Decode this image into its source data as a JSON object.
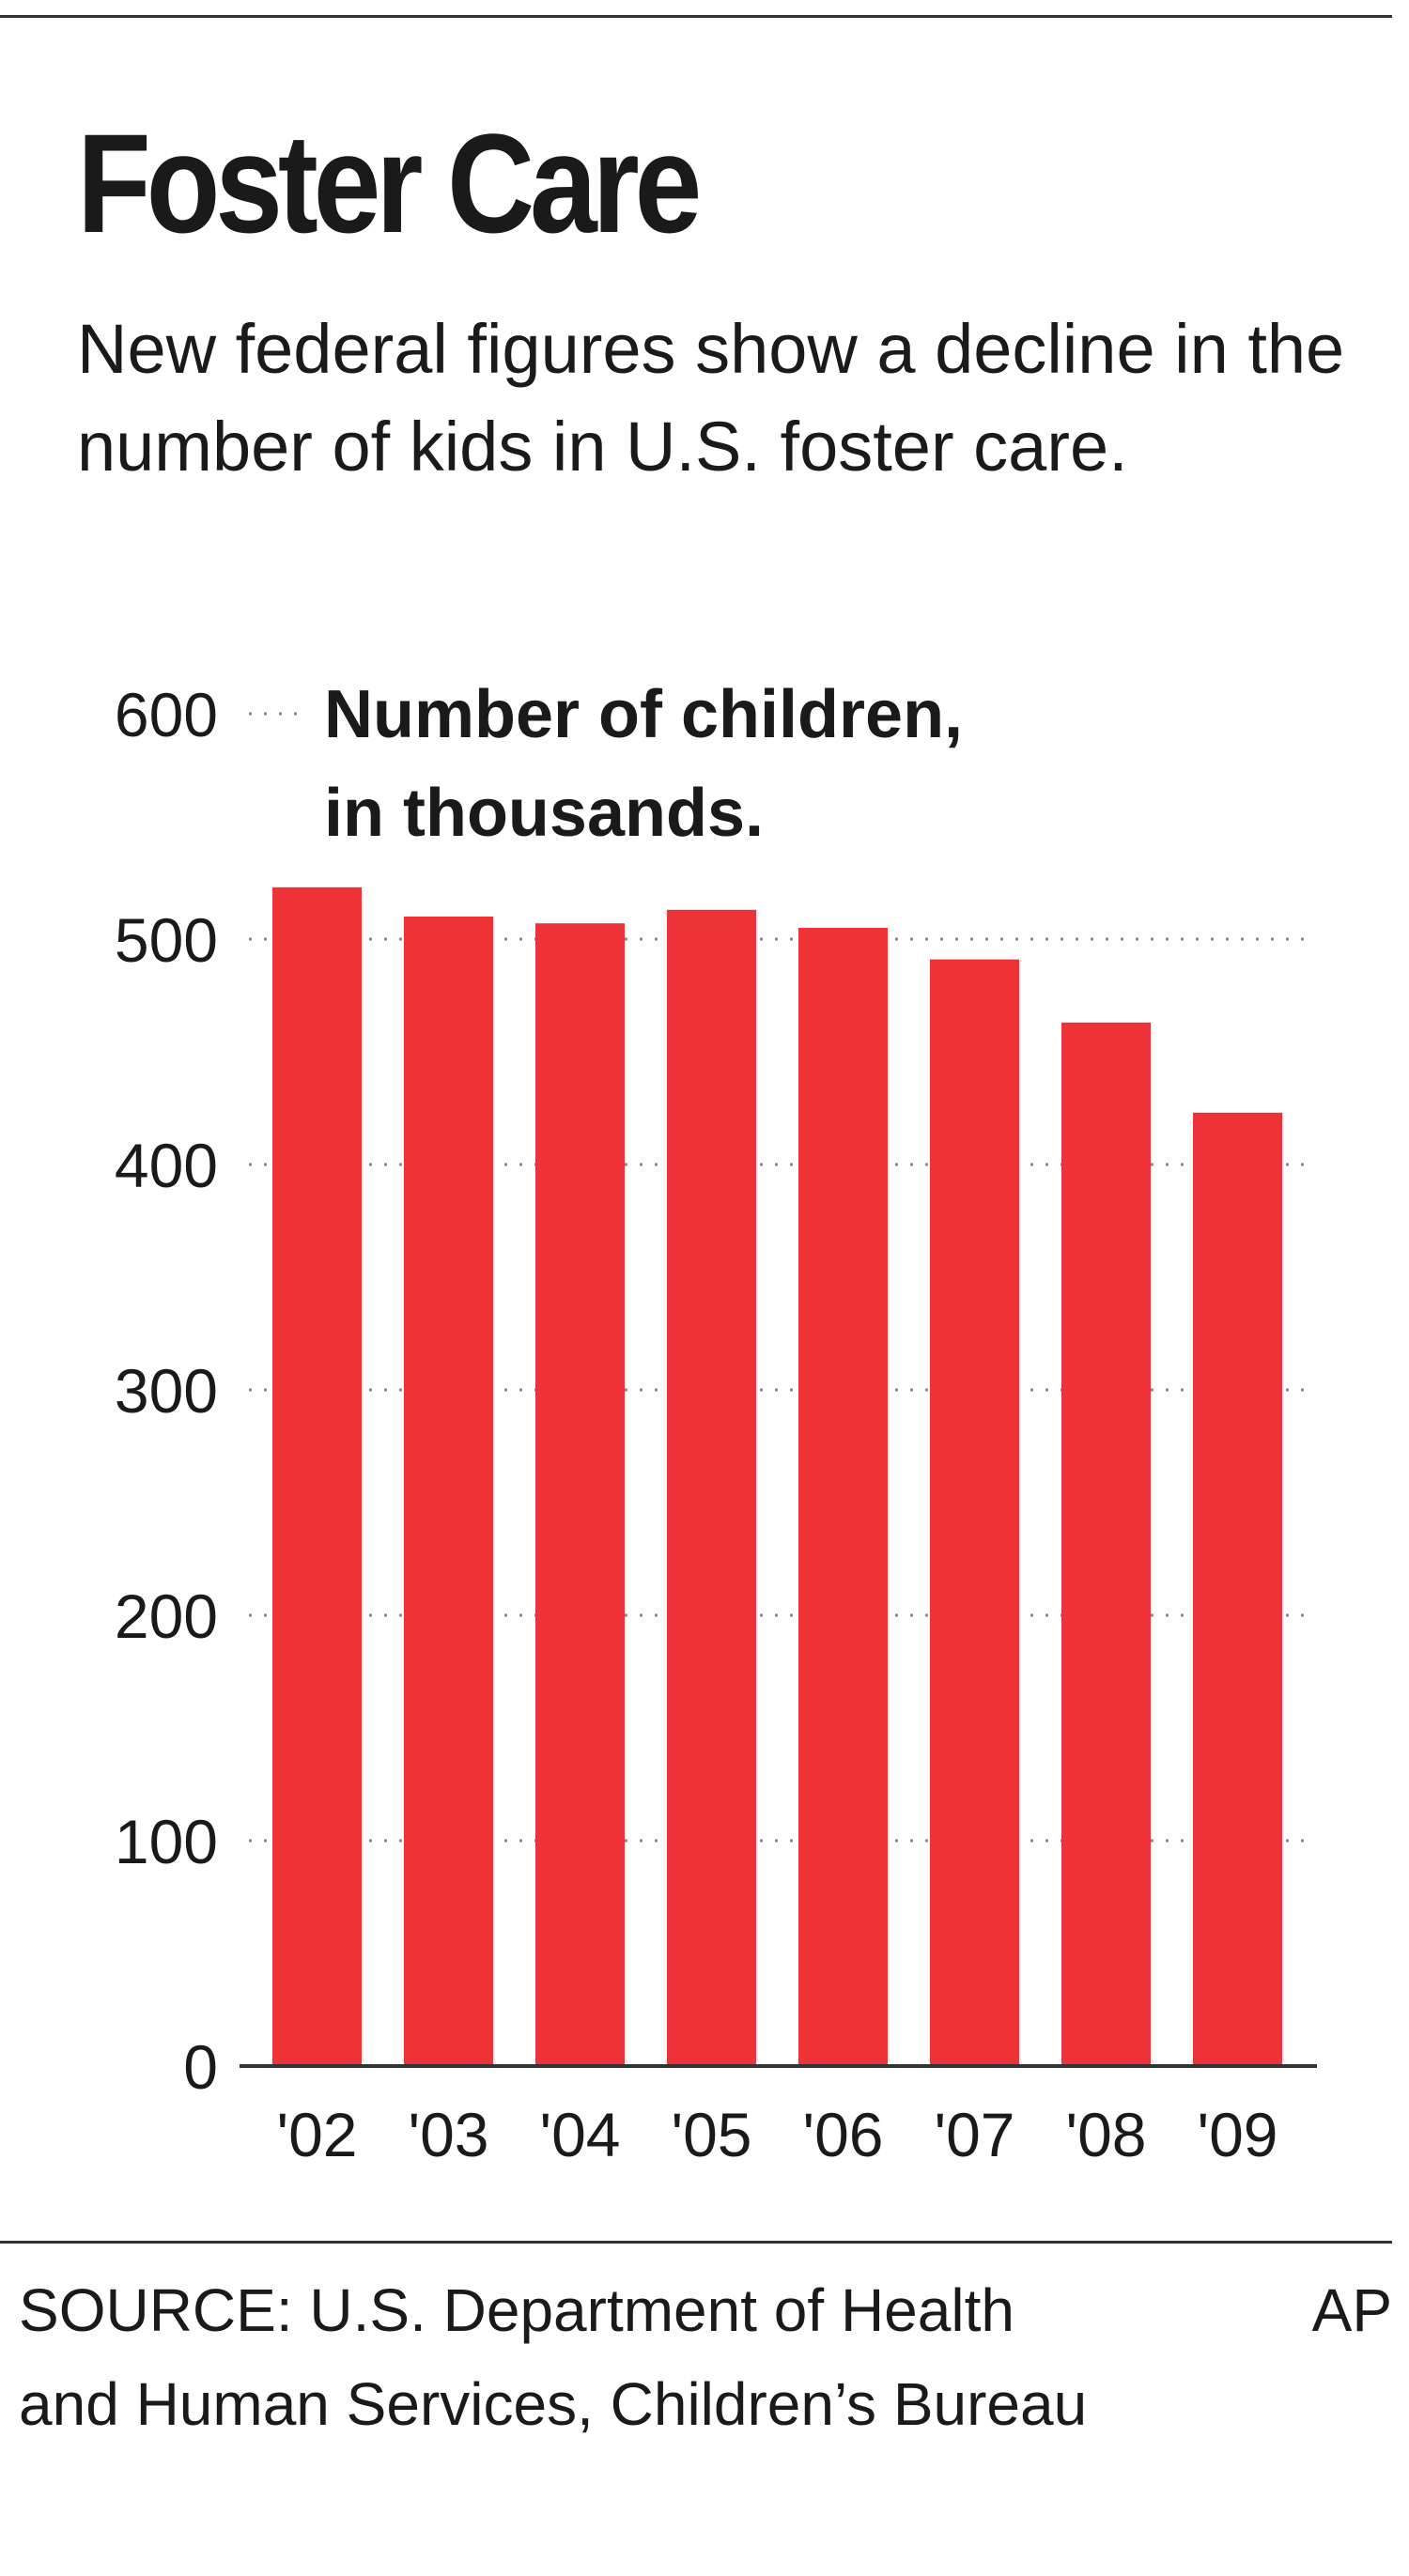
{
  "header": {
    "title": "Foster Care",
    "subtitle": "New federal figures show a decline in the number of kids in U.S. foster care."
  },
  "footer": {
    "source": "SOURCE: U.S. Department of Health and Human Services, Children’s Bureau",
    "credit": "AP"
  },
  "colors": {
    "bar": "#ee3338",
    "text": "#1a1a1a",
    "grid": "#888888"
  },
  "chart_data": {
    "type": "bar",
    "title": "Number of children, in thousands.",
    "title_lines": [
      "Number of children,",
      "in thousands."
    ],
    "categories": [
      "'02",
      "'03",
      "'04",
      "'05",
      "'06",
      "'07",
      "'08",
      "'09"
    ],
    "values": [
      523,
      510,
      507,
      513,
      505,
      491,
      463,
      423
    ],
    "yticks": [
      0,
      100,
      200,
      300,
      400,
      500,
      600
    ],
    "ylim": [
      0,
      600
    ],
    "xlabel": "",
    "ylabel": "",
    "grid": true
  }
}
